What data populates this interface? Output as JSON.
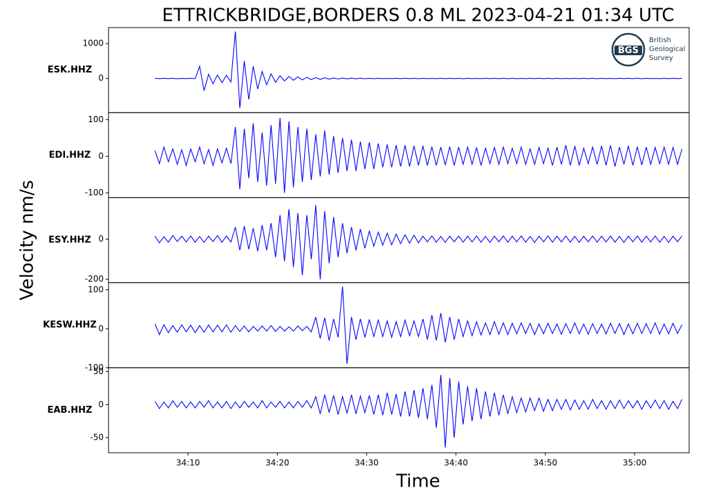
{
  "chart_data": {
    "type": "line",
    "title": "ETTRICKBRIDGE,BORDERS 0.8 ML   2023-04-21 01:34 UTC",
    "xlabel": "Time",
    "ylabel": "Velocity nm/s",
    "xlim": [
      1.1,
      66.1
    ],
    "xticks": [
      {
        "value": 10,
        "label": "34:10"
      },
      {
        "value": 20,
        "label": "34:20"
      },
      {
        "value": 30,
        "label": "34:30"
      },
      {
        "value": 40,
        "label": "34:40"
      },
      {
        "value": 50,
        "label": "34:50"
      },
      {
        "value": 60,
        "label": "35:00"
      }
    ],
    "x": [
      6.3,
      6.8,
      7.3,
      7.8,
      8.3,
      8.8,
      9.3,
      9.8,
      10.3,
      10.8,
      11.3,
      11.8,
      12.3,
      12.8,
      13.3,
      13.8,
      14.3,
      14.8,
      15.3,
      15.8,
      16.3,
      16.8,
      17.3,
      17.8,
      18.3,
      18.8,
      19.3,
      19.8,
      20.3,
      20.8,
      21.3,
      21.8,
      22.3,
      22.8,
      23.3,
      23.8,
      24.3,
      24.8,
      25.3,
      25.8,
      26.3,
      26.8,
      27.3,
      27.8,
      28.3,
      28.8,
      29.3,
      29.8,
      30.3,
      30.8,
      31.3,
      31.8,
      32.3,
      32.8,
      33.3,
      33.8,
      34.3,
      34.8,
      35.3,
      35.8,
      36.3,
      36.8,
      37.3,
      37.8,
      38.3,
      38.8,
      39.3,
      39.8,
      40.3,
      40.8,
      41.3,
      41.8,
      42.3,
      42.8,
      43.3,
      43.8,
      44.3,
      44.8,
      45.3,
      45.8,
      46.3,
      46.8,
      47.3,
      47.8,
      48.3,
      48.8,
      49.3,
      49.8,
      50.3,
      50.8,
      51.3,
      51.8,
      52.3,
      52.8,
      53.3,
      53.8,
      54.3,
      54.8,
      55.3,
      55.8,
      56.3,
      56.8,
      57.3,
      57.8,
      58.3,
      58.8,
      59.3,
      59.8,
      60.3,
      60.8,
      61.3,
      61.8,
      62.3,
      62.8,
      63.3,
      63.8,
      64.3,
      64.8,
      65.3
    ],
    "series": [
      {
        "name": "ESK.HHZ",
        "color": "#0000ff",
        "ylim": [
          -980,
          1460
        ],
        "yticks": [
          0,
          1000
        ],
        "values": [
          5,
          -5,
          6,
          -4,
          5,
          -6,
          4,
          -5,
          6,
          -5,
          350,
          -350,
          120,
          -150,
          100,
          -120,
          90,
          -100,
          1350,
          -850,
          500,
          -600,
          350,
          -300,
          200,
          -180,
          130,
          -110,
          80,
          -70,
          60,
          -50,
          45,
          -40,
          35,
          -30,
          25,
          -25,
          20,
          -18,
          15,
          -15,
          12,
          -12,
          10,
          -10,
          8,
          -8,
          6,
          -6,
          5,
          -5,
          4,
          -4,
          6,
          -5,
          5,
          -4,
          5,
          -6,
          5,
          -5,
          4,
          -4,
          6,
          -5,
          5,
          -4,
          5,
          -6,
          5,
          -5,
          4,
          -4,
          6,
          -5,
          5,
          -4,
          5,
          -6,
          5,
          -5,
          4,
          -4,
          6,
          -5,
          5,
          -4,
          5,
          -6,
          5,
          -5,
          4,
          -4,
          6,
          -5,
          5,
          -4,
          5,
          -6,
          5,
          -5,
          4,
          -4,
          6,
          -5,
          5,
          -4,
          5,
          -6,
          5,
          -5,
          4,
          -4,
          6,
          -5,
          5,
          -4,
          5
        ]
      },
      {
        "name": "EDI.HHZ",
        "color": "#0000ff",
        "ylim": [
          -113,
          119
        ],
        "yticks": [
          -100,
          0,
          100
        ],
        "values": [
          15,
          -20,
          25,
          -15,
          20,
          -22,
          18,
          -25,
          20,
          -15,
          25,
          -20,
          18,
          -25,
          20,
          -18,
          22,
          -20,
          80,
          -90,
          75,
          -60,
          90,
          -70,
          65,
          -80,
          85,
          -75,
          105,
          -100,
          95,
          -85,
          80,
          -70,
          75,
          -65,
          60,
          -55,
          70,
          -50,
          55,
          -45,
          50,
          -40,
          45,
          -40,
          40,
          -35,
          38,
          -35,
          35,
          -30,
          32,
          -30,
          30,
          -28,
          30,
          -28,
          28,
          -25,
          28,
          -25,
          26,
          -25,
          25,
          -24,
          26,
          -25,
          25,
          -22,
          25,
          -22,
          24,
          -25,
          22,
          -20,
          24,
          -22,
          25,
          -20,
          22,
          -20,
          25,
          -22,
          20,
          -22,
          24,
          -20,
          22,
          -25,
          25,
          -22,
          30,
          -25,
          28,
          -25,
          22,
          -20,
          25,
          -22,
          28,
          -25,
          30,
          -28,
          25,
          -22,
          28,
          -25,
          26,
          -24,
          25,
          -22,
          24,
          -20,
          25,
          -22,
          24,
          -22,
          20
        ]
      },
      {
        "name": "ESY.HHZ",
        "color": "#0000ff",
        "ylim": [
          -217,
          207
        ],
        "yticks": [
          -200,
          0
        ],
        "values": [
          15,
          -18,
          12,
          -15,
          18,
          -12,
          15,
          -14,
          16,
          -15,
          14,
          -16,
          15,
          -12,
          18,
          -15,
          16,
          -14,
          60,
          -55,
          65,
          -50,
          55,
          -60,
          70,
          -55,
          80,
          -90,
          120,
          -110,
          150,
          -140,
          130,
          -180,
          120,
          -100,
          170,
          -200,
          140,
          -120,
          110,
          -90,
          80,
          -70,
          60,
          -55,
          50,
          -45,
          40,
          -35,
          35,
          -30,
          30,
          -28,
          25,
          -22,
          22,
          -20,
          20,
          -18,
          15,
          -14,
          16,
          -15,
          14,
          -16,
          15,
          -13,
          16,
          -15,
          15,
          -14,
          16,
          -15,
          14,
          -16,
          15,
          -13,
          16,
          -15,
          15,
          -14,
          16,
          -15,
          14,
          -16,
          15,
          -13,
          16,
          -15,
          15,
          -14,
          16,
          -15,
          14,
          -16,
          15,
          -13,
          16,
          -15,
          15,
          -14,
          16,
          -15,
          14,
          -16,
          15,
          -13,
          16,
          -15,
          15,
          -14,
          16,
          -15,
          14,
          -16,
          15,
          -13,
          16
        ]
      },
      {
        "name": "KESW.HHZ",
        "color": "#0000ff",
        "ylim": [
          -100,
          118
        ],
        "yticks": [
          -100,
          0,
          100
        ],
        "values": [
          12,
          -15,
          10,
          -10,
          8,
          -9,
          10,
          -8,
          9,
          -10,
          8,
          -9,
          10,
          -8,
          9,
          -8,
          10,
          -9,
          8,
          -7,
          7,
          -8,
          6,
          -6,
          7,
          -6,
          8,
          -7,
          6,
          -6,
          5,
          -6,
          7,
          -5,
          6,
          -8,
          30,
          -25,
          28,
          -30,
          25,
          -22,
          108,
          -90,
          30,
          -28,
          25,
          -22,
          24,
          -20,
          22,
          -20,
          20,
          -22,
          18,
          -20,
          22,
          -18,
          20,
          -20,
          25,
          -28,
          35,
          -30,
          40,
          -35,
          30,
          -28,
          25,
          -20,
          20,
          -18,
          18,
          -16,
          15,
          -15,
          18,
          -14,
          15,
          -15,
          14,
          -13,
          15,
          -12,
          14,
          -15,
          12,
          -13,
          14,
          -12,
          12,
          -14,
          13,
          -12,
          15,
          -13,
          12,
          -14,
          13,
          -12,
          12,
          -13,
          14,
          -12,
          13,
          -15,
          12,
          -13,
          14,
          -12,
          13,
          -12,
          15,
          -14,
          12,
          -13,
          14,
          -12,
          10
        ]
      },
      {
        "name": "EAB.HHZ",
        "color": "#0000ff",
        "ylim": [
          -73,
          56
        ],
        "yticks": [
          -50,
          0,
          50
        ],
        "values": [
          5,
          -6,
          4,
          -5,
          6,
          -4,
          5,
          -5,
          4,
          -5,
          5,
          -4,
          6,
          -5,
          4,
          -5,
          5,
          -6,
          4,
          -5,
          5,
          -4,
          4,
          -5,
          6,
          -5,
          4,
          -4,
          5,
          -5,
          4,
          -5,
          5,
          -4,
          6,
          -5,
          12,
          -14,
          15,
          -12,
          14,
          -15,
          12,
          -13,
          15,
          -14,
          13,
          -12,
          14,
          -15,
          15,
          -16,
          18,
          -15,
          16,
          -18,
          20,
          -18,
          22,
          -20,
          25,
          -22,
          30,
          -35,
          45,
          -65,
          40,
          -50,
          35,
          -30,
          28,
          -25,
          25,
          -22,
          20,
          -18,
          18,
          -16,
          15,
          -14,
          12,
          -12,
          10,
          -11,
          10,
          -9,
          10,
          -10,
          8,
          -9,
          8,
          -7,
          8,
          -8,
          7,
          -7,
          6,
          -7,
          8,
          -6,
          6,
          -7,
          6,
          -6,
          7,
          -6,
          6,
          -5,
          6,
          -7,
          6,
          -5,
          7,
          -6,
          6,
          -7,
          5,
          -6,
          8
        ]
      }
    ]
  },
  "logo": {
    "abbr": "BGS",
    "name": [
      "British",
      "Geological",
      "Survey"
    ]
  }
}
